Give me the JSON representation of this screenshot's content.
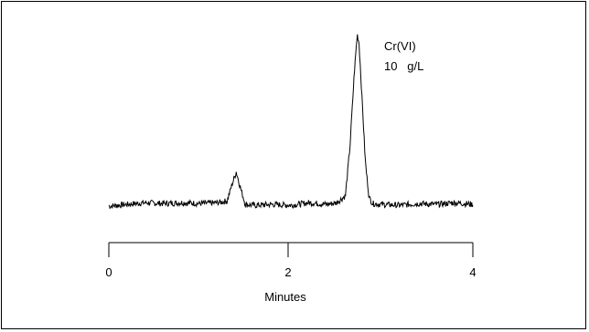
{
  "chart_data": {
    "type": "line",
    "title": "",
    "xlabel": "Minutes",
    "ylabel": "",
    "xlim": [
      0,
      4
    ],
    "x_ticks": [
      "0",
      "2",
      "4"
    ],
    "grid": false,
    "series": [
      {
        "x": [
          0.0,
          0.2,
          0.4,
          0.6,
          0.8,
          1.0,
          1.2,
          1.3,
          1.35,
          1.4,
          1.45,
          1.5,
          1.6,
          1.8,
          2.0,
          2.2,
          2.4,
          2.5,
          2.6,
          2.65,
          2.7,
          2.73,
          2.75,
          2.78,
          2.82,
          2.86,
          2.9,
          3.0,
          3.2,
          3.4,
          3.6,
          3.8,
          4.0
        ],
        "y": [
          0.0,
          0.01,
          0.02,
          0.015,
          0.02,
          0.015,
          0.02,
          0.03,
          0.12,
          0.2,
          0.1,
          0.01,
          0.005,
          0.01,
          0.005,
          0.02,
          0.01,
          0.02,
          0.06,
          0.35,
          0.8,
          1.0,
          0.95,
          0.65,
          0.25,
          0.05,
          0.015,
          0.01,
          0.005,
          0.015,
          0.01,
          0.02,
          0.01
        ]
      }
    ]
  },
  "annotation": {
    "line1": "Cr(VI)",
    "line2": "10   g/L"
  },
  "axis": {
    "label": "Minutes",
    "ticks": [
      "0",
      "2",
      "4"
    ]
  }
}
